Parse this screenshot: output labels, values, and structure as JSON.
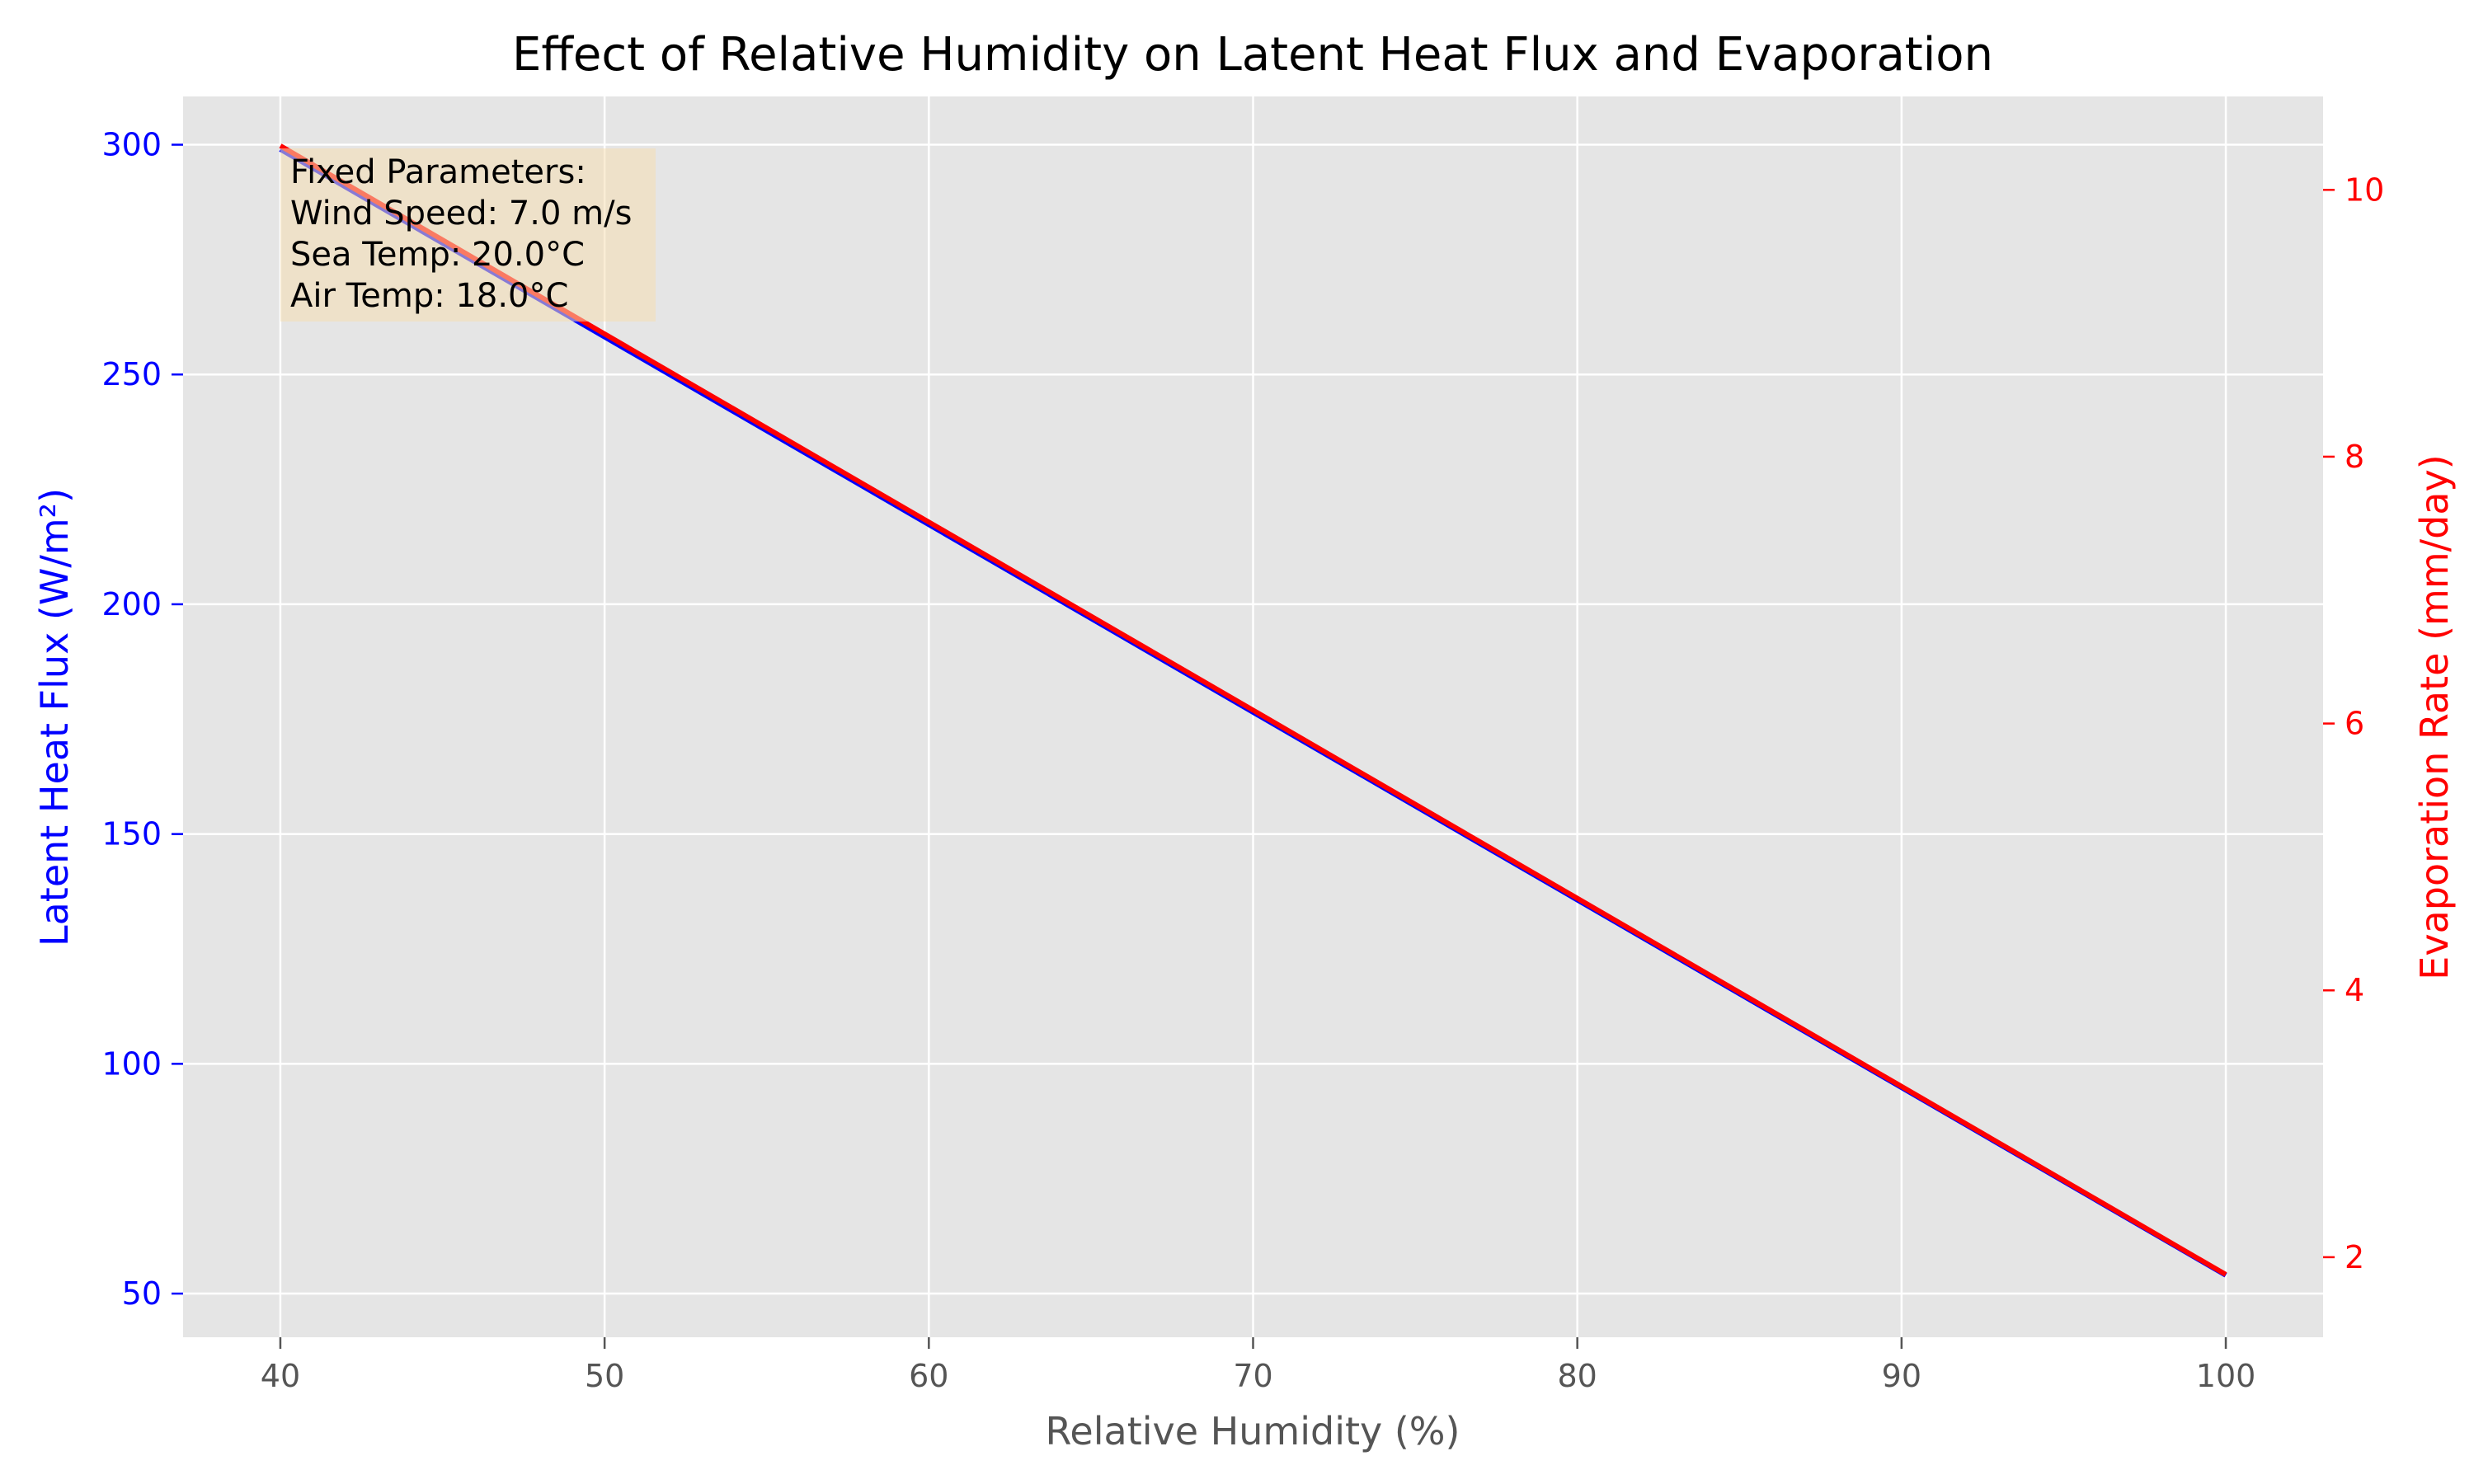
{
  "chart_data": {
    "type": "line",
    "title": "Effect of Relative Humidity on Latent Heat Flux and Evaporation",
    "xlabel": "Relative Humidity (%)",
    "ylabel_left": "Latent Heat Flux (W/m²)",
    "ylabel_right": "Evaporation Rate (mm/day)",
    "xlim": [
      37,
      103
    ],
    "ylim_left": [
      40.5,
      310.5
    ],
    "ylim_right": [
      1.4,
      10.7
    ],
    "x_ticks": [
      40,
      50,
      60,
      70,
      80,
      90,
      100
    ],
    "y_left_ticks": [
      50,
      100,
      150,
      200,
      250,
      300
    ],
    "y_right_ticks": [
      2,
      4,
      6,
      8,
      10
    ],
    "grid": true,
    "colors": {
      "left_axis": "#0000ff",
      "right_axis": "#ff0000",
      "x_axis": "#555555",
      "plot_background": "#e5e5e5",
      "grid": "#ffffff",
      "annotation_box": "#f5deb3"
    },
    "series": [
      {
        "axis": "left",
        "color": "#0000ff",
        "x": [
          40,
          100
        ],
        "y": [
          299,
          54
        ]
      },
      {
        "axis": "right",
        "color": "#ff0000",
        "x": [
          40,
          100
        ],
        "y": [
          10.33,
          1.87
        ]
      }
    ],
    "annotation": {
      "location": "top-left",
      "lines": [
        "Fixed Parameters:",
        "Wind Speed: 7.0 m/s",
        "Sea Temp: 20.0°C",
        "Air Temp: 18.0°C"
      ]
    }
  }
}
